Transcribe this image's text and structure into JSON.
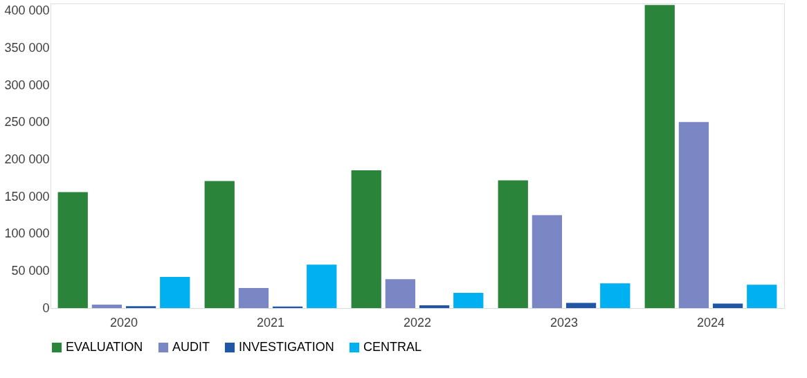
{
  "chart_data": {
    "type": "bar",
    "categories": [
      "2020",
      "2021",
      "2022",
      "2023",
      "2024"
    ],
    "series": [
      {
        "name": "EVALUATION",
        "color": "#2a843a",
        "values": [
          156000,
          171000,
          185500,
          172000,
          408000
        ]
      },
      {
        "name": "AUDIT",
        "color": "#7b87c4",
        "values": [
          4600,
          27000,
          39000,
          125000,
          250500
        ]
      },
      {
        "name": "INVESTIGATION",
        "color": "#1f56a6",
        "values": [
          2500,
          2000,
          3700,
          7000,
          6000
        ]
      },
      {
        "name": "CENTRAL",
        "color": "#00b0f0",
        "values": [
          42000,
          58500,
          20400,
          33400,
          31500
        ]
      }
    ],
    "ylim": [
      0,
      410000
    ],
    "yticks": [
      {
        "value": 0,
        "label": "0"
      },
      {
        "value": 50000,
        "label": "50 000"
      },
      {
        "value": 100000,
        "label": "100 000"
      },
      {
        "value": 150000,
        "label": "150 000"
      },
      {
        "value": 200000,
        "label": "200 000"
      },
      {
        "value": 250000,
        "label": "250 000"
      },
      {
        "value": 300000,
        "label": "300 000"
      },
      {
        "value": 350000,
        "label": "350 000"
      },
      {
        "value": 400000,
        "label": "400 000"
      }
    ],
    "grid": false,
    "legend": "bottom"
  }
}
